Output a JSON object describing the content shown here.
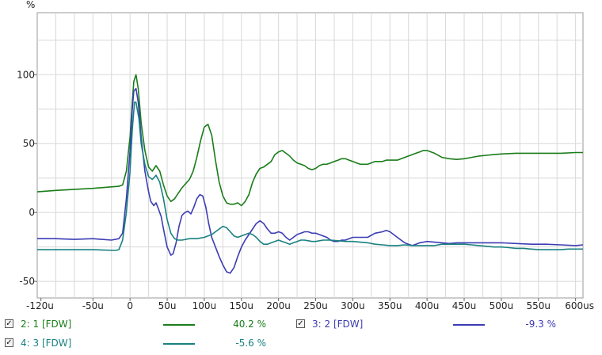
{
  "chart_data": {
    "type": "line",
    "ylabel": "%",
    "xlim": [
      -125,
      610
    ],
    "ylim": [
      -62,
      145
    ],
    "grid": true,
    "y_ticks": [
      {
        "v": 100,
        "label": "100"
      },
      {
        "v": 50,
        "label": "50"
      },
      {
        "v": 0,
        "label": "0"
      },
      {
        "v": -50,
        "label": "-50"
      }
    ],
    "x_ticks": [
      {
        "v": -120,
        "label": "-120u"
      },
      {
        "v": -50,
        "label": "-50u"
      },
      {
        "v": 0,
        "label": "0"
      },
      {
        "v": 50,
        "label": "50u"
      },
      {
        "v": 100,
        "label": "100u"
      },
      {
        "v": 150,
        "label": "150u"
      },
      {
        "v": 200,
        "label": "200u"
      },
      {
        "v": 250,
        "label": "250u"
      },
      {
        "v": 300,
        "label": "300u"
      },
      {
        "v": 350,
        "label": "350u"
      },
      {
        "v": 400,
        "label": "400u"
      },
      {
        "v": 450,
        "label": "450u"
      },
      {
        "v": 500,
        "label": "500u"
      },
      {
        "v": 550,
        "label": "550u"
      },
      {
        "v": 600,
        "label": "600us"
      }
    ],
    "series": [
      {
        "name": "2: 1 [FDW]",
        "color": "#1a7d1a",
        "points": [
          [
            -125,
            15
          ],
          [
            -100,
            16
          ],
          [
            -50,
            17.5
          ],
          [
            -15,
            19
          ],
          [
            -10,
            20
          ],
          [
            -5,
            30
          ],
          [
            0,
            55
          ],
          [
            3,
            80
          ],
          [
            5,
            95
          ],
          [
            8,
            100
          ],
          [
            11,
            90
          ],
          [
            15,
            65
          ],
          [
            20,
            45
          ],
          [
            25,
            33
          ],
          [
            30,
            30
          ],
          [
            35,
            34
          ],
          [
            40,
            30
          ],
          [
            45,
            20
          ],
          [
            50,
            12
          ],
          [
            55,
            8
          ],
          [
            60,
            10
          ],
          [
            65,
            14
          ],
          [
            70,
            18
          ],
          [
            75,
            21
          ],
          [
            80,
            24
          ],
          [
            85,
            30
          ],
          [
            90,
            40
          ],
          [
            95,
            52
          ],
          [
            100,
            62
          ],
          [
            105,
            64
          ],
          [
            110,
            56
          ],
          [
            115,
            38
          ],
          [
            120,
            22
          ],
          [
            125,
            12
          ],
          [
            130,
            7
          ],
          [
            135,
            6
          ],
          [
            140,
            6
          ],
          [
            145,
            7
          ],
          [
            150,
            5
          ],
          [
            155,
            8
          ],
          [
            160,
            13
          ],
          [
            165,
            22
          ],
          [
            170,
            28
          ],
          [
            175,
            32
          ],
          [
            180,
            33
          ],
          [
            185,
            35
          ],
          [
            190,
            37
          ],
          [
            195,
            42
          ],
          [
            200,
            44
          ],
          [
            205,
            45
          ],
          [
            210,
            43
          ],
          [
            215,
            41
          ],
          [
            220,
            38
          ],
          [
            225,
            36
          ],
          [
            230,
            35
          ],
          [
            235,
            34
          ],
          [
            240,
            32
          ],
          [
            245,
            31
          ],
          [
            250,
            32
          ],
          [
            255,
            34
          ],
          [
            260,
            35
          ],
          [
            265,
            35
          ],
          [
            270,
            36
          ],
          [
            275,
            37
          ],
          [
            280,
            38
          ],
          [
            285,
            39
          ],
          [
            290,
            39
          ],
          [
            295,
            38
          ],
          [
            300,
            37
          ],
          [
            305,
            36
          ],
          [
            310,
            35
          ],
          [
            315,
            35
          ],
          [
            320,
            35
          ],
          [
            325,
            36
          ],
          [
            330,
            37
          ],
          [
            335,
            37
          ],
          [
            340,
            37
          ],
          [
            345,
            38
          ],
          [
            350,
            38
          ],
          [
            360,
            38
          ],
          [
            370,
            40
          ],
          [
            380,
            42
          ],
          [
            385,
            43
          ],
          [
            390,
            44
          ],
          [
            395,
            45
          ],
          [
            400,
            45
          ],
          [
            410,
            43
          ],
          [
            420,
            40
          ],
          [
            430,
            39
          ],
          [
            440,
            38.5
          ],
          [
            450,
            39
          ],
          [
            460,
            40
          ],
          [
            470,
            41
          ],
          [
            480,
            41.5
          ],
          [
            490,
            42
          ],
          [
            500,
            42.5
          ],
          [
            520,
            43
          ],
          [
            540,
            43
          ],
          [
            560,
            43
          ],
          [
            580,
            43
          ],
          [
            600,
            43.5
          ],
          [
            610,
            43.5
          ]
        ]
      },
      {
        "name": "3: 2 [FDW]",
        "color": "#3c3cb4",
        "points": [
          [
            -125,
            -19
          ],
          [
            -100,
            -19
          ],
          [
            -75,
            -19.5
          ],
          [
            -50,
            -19
          ],
          [
            -25,
            -20
          ],
          [
            -15,
            -19
          ],
          [
            -10,
            -15
          ],
          [
            -5,
            10
          ],
          [
            0,
            45
          ],
          [
            3,
            75
          ],
          [
            5,
            88
          ],
          [
            8,
            90
          ],
          [
            11,
            80
          ],
          [
            15,
            55
          ],
          [
            20,
            30
          ],
          [
            25,
            15
          ],
          [
            28,
            8
          ],
          [
            32,
            5
          ],
          [
            35,
            7
          ],
          [
            38,
            3
          ],
          [
            42,
            -3
          ],
          [
            45,
            -12
          ],
          [
            50,
            -25
          ],
          [
            55,
            -31
          ],
          [
            58,
            -30
          ],
          [
            62,
            -22
          ],
          [
            66,
            -10
          ],
          [
            70,
            -2
          ],
          [
            74,
            0
          ],
          [
            78,
            1
          ],
          [
            82,
            -1
          ],
          [
            86,
            4
          ],
          [
            90,
            10
          ],
          [
            94,
            13
          ],
          [
            98,
            12
          ],
          [
            102,
            4
          ],
          [
            106,
            -8
          ],
          [
            110,
            -18
          ],
          [
            115,
            -25
          ],
          [
            120,
            -32
          ],
          [
            125,
            -38
          ],
          [
            130,
            -43
          ],
          [
            135,
            -44
          ],
          [
            140,
            -40
          ],
          [
            145,
            -32
          ],
          [
            150,
            -25
          ],
          [
            155,
            -20
          ],
          [
            160,
            -16
          ],
          [
            165,
            -12
          ],
          [
            170,
            -8
          ],
          [
            175,
            -6
          ],
          [
            180,
            -8
          ],
          [
            185,
            -12
          ],
          [
            190,
            -15
          ],
          [
            195,
            -15
          ],
          [
            200,
            -14
          ],
          [
            205,
            -15
          ],
          [
            210,
            -18
          ],
          [
            215,
            -20
          ],
          [
            220,
            -18
          ],
          [
            225,
            -16
          ],
          [
            230,
            -15
          ],
          [
            235,
            -14
          ],
          [
            240,
            -14
          ],
          [
            245,
            -15
          ],
          [
            250,
            -15
          ],
          [
            255,
            -16
          ],
          [
            260,
            -17
          ],
          [
            265,
            -18
          ],
          [
            270,
            -20
          ],
          [
            275,
            -21
          ],
          [
            280,
            -21
          ],
          [
            285,
            -20
          ],
          [
            290,
            -20
          ],
          [
            295,
            -19
          ],
          [
            300,
            -18
          ],
          [
            305,
            -18
          ],
          [
            310,
            -18
          ],
          [
            315,
            -18
          ],
          [
            320,
            -18
          ],
          [
            330,
            -15
          ],
          [
            340,
            -14
          ],
          [
            345,
            -13
          ],
          [
            350,
            -14
          ],
          [
            355,
            -16
          ],
          [
            360,
            -18
          ],
          [
            365,
            -20
          ],
          [
            370,
            -22
          ],
          [
            375,
            -23
          ],
          [
            380,
            -24
          ],
          [
            385,
            -23
          ],
          [
            390,
            -22
          ],
          [
            395,
            -21.5
          ],
          [
            400,
            -21
          ],
          [
            410,
            -21.5
          ],
          [
            420,
            -22
          ],
          [
            430,
            -22.5
          ],
          [
            440,
            -22
          ],
          [
            460,
            -22
          ],
          [
            480,
            -22
          ],
          [
            500,
            -22
          ],
          [
            520,
            -22.5
          ],
          [
            540,
            -23
          ],
          [
            560,
            -23
          ],
          [
            580,
            -23.5
          ],
          [
            600,
            -24
          ],
          [
            610,
            -23.5
          ]
        ]
      },
      {
        "name": "4: 3 [FDW]",
        "color": "#1a8080",
        "points": [
          [
            -125,
            -27
          ],
          [
            -100,
            -27
          ],
          [
            -50,
            -27
          ],
          [
            -20,
            -27.5
          ],
          [
            -15,
            -27
          ],
          [
            -10,
            -20
          ],
          [
            -5,
            0
          ],
          [
            0,
            30
          ],
          [
            3,
            60
          ],
          [
            6,
            80
          ],
          [
            8,
            80
          ],
          [
            12,
            68
          ],
          [
            15,
            50
          ],
          [
            20,
            35
          ],
          [
            25,
            26
          ],
          [
            30,
            24
          ],
          [
            35,
            27
          ],
          [
            40,
            22
          ],
          [
            45,
            10
          ],
          [
            50,
            -5
          ],
          [
            55,
            -15
          ],
          [
            60,
            -19
          ],
          [
            65,
            -20
          ],
          [
            70,
            -20
          ],
          [
            80,
            -19
          ],
          [
            90,
            -19
          ],
          [
            100,
            -18
          ],
          [
            105,
            -17
          ],
          [
            110,
            -16
          ],
          [
            115,
            -14
          ],
          [
            120,
            -12
          ],
          [
            125,
            -10
          ],
          [
            130,
            -11
          ],
          [
            135,
            -14
          ],
          [
            140,
            -17
          ],
          [
            145,
            -18
          ],
          [
            150,
            -17
          ],
          [
            155,
            -16
          ],
          [
            160,
            -15
          ],
          [
            165,
            -16
          ],
          [
            170,
            -18
          ],
          [
            175,
            -21
          ],
          [
            180,
            -23
          ],
          [
            185,
            -23
          ],
          [
            190,
            -22
          ],
          [
            195,
            -21
          ],
          [
            200,
            -20
          ],
          [
            205,
            -21
          ],
          [
            210,
            -22
          ],
          [
            215,
            -23
          ],
          [
            220,
            -22
          ],
          [
            225,
            -21
          ],
          [
            230,
            -20
          ],
          [
            235,
            -20
          ],
          [
            240,
            -20.5
          ],
          [
            245,
            -21
          ],
          [
            250,
            -21
          ],
          [
            260,
            -20
          ],
          [
            270,
            -20
          ],
          [
            280,
            -20.5
          ],
          [
            290,
            -21
          ],
          [
            300,
            -21
          ],
          [
            310,
            -21.5
          ],
          [
            320,
            -22
          ],
          [
            330,
            -23
          ],
          [
            340,
            -23.5
          ],
          [
            350,
            -24
          ],
          [
            360,
            -24
          ],
          [
            370,
            -23.5
          ],
          [
            380,
            -24
          ],
          [
            390,
            -24
          ],
          [
            400,
            -24
          ],
          [
            410,
            -24
          ],
          [
            420,
            -23
          ],
          [
            430,
            -23
          ],
          [
            440,
            -23
          ],
          [
            450,
            -23
          ],
          [
            460,
            -23.5
          ],
          [
            470,
            -24
          ],
          [
            480,
            -24.5
          ],
          [
            490,
            -25
          ],
          [
            500,
            -25
          ],
          [
            510,
            -25.5
          ],
          [
            520,
            -26
          ],
          [
            530,
            -26
          ],
          [
            540,
            -26.5
          ],
          [
            550,
            -27
          ],
          [
            560,
            -27
          ],
          [
            570,
            -27
          ],
          [
            580,
            -27
          ],
          [
            590,
            -26.5
          ],
          [
            600,
            -26.5
          ],
          [
            610,
            -26.5
          ]
        ]
      }
    ]
  },
  "legend": [
    {
      "label": "2: 1 [FDW]",
      "value": "40.2 %",
      "color": "#1a7d1a",
      "checked": "✓"
    },
    {
      "label": "3: 2 [FDW]",
      "value": "-9.3 %",
      "color": "#3c3cb4",
      "checked": "✓"
    },
    {
      "label": "4: 3 [FDW]",
      "value": "-5.6 %",
      "color": "#1a8080",
      "checked": "✓"
    }
  ]
}
